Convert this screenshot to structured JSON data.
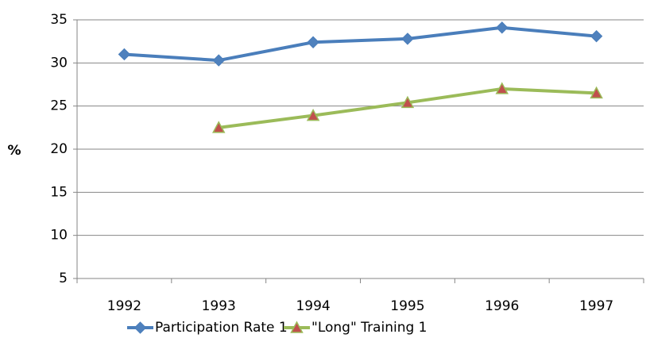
{
  "chart_data": {
    "type": "line",
    "y_label": "%",
    "categories": [
      "1992",
      "1993",
      "1994",
      "1995",
      "1996",
      "1997"
    ],
    "series": [
      {
        "name": "Participation Rate 1",
        "color": "#4a7ebb",
        "marker": "diamond",
        "marker_color": "#4f81bd",
        "values": [
          31,
          30.3,
          32.4,
          32.8,
          34.1,
          33.1
        ]
      },
      {
        "name": "\"Long\" Training 1",
        "color": "#9bbb59",
        "marker": "triangle",
        "marker_color": "#c0504d",
        "values": [
          null,
          22.5,
          23.9,
          25.4,
          27,
          26.5
        ]
      }
    ],
    "ylim": [
      5,
      35
    ],
    "yticks": [
      5,
      10,
      15,
      20,
      25,
      30,
      35
    ],
    "grid": true,
    "legend": "bottom"
  }
}
